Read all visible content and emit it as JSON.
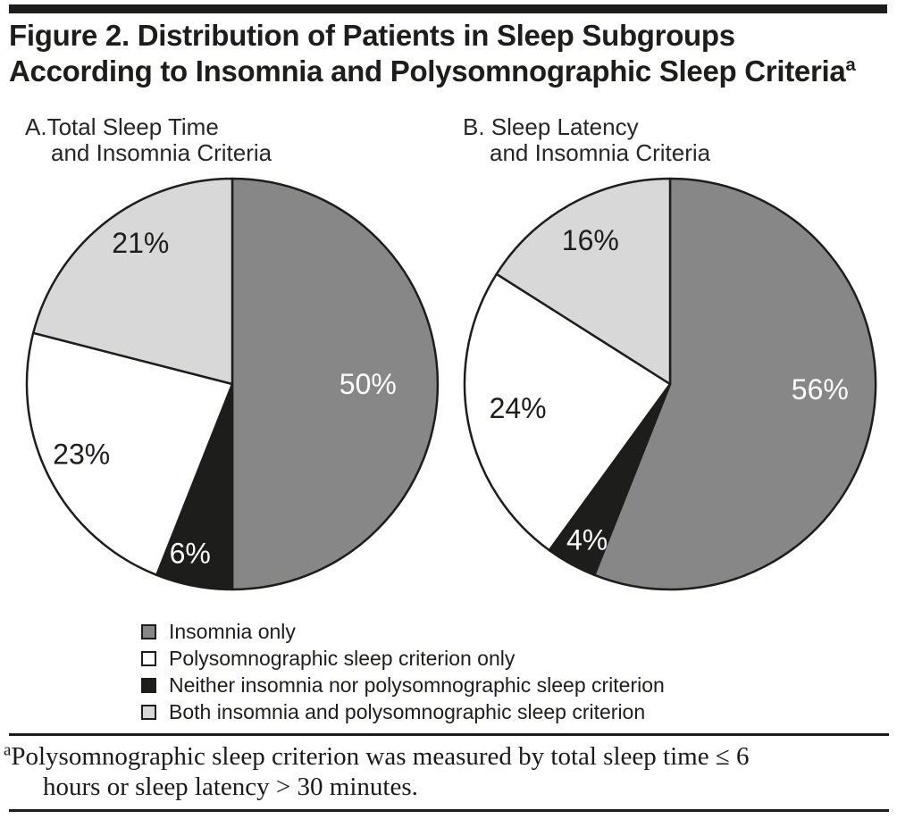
{
  "header": {
    "title_line1": "Figure 2. Distribution of Patients in Sleep Subgroups",
    "title_line2": "According to Insomnia and Polysomnographic Sleep Criteria",
    "title_superscript": "a"
  },
  "colors": {
    "insomnia_only": "#878787",
    "psg_only": "#ffffff",
    "neither": "#1d1d1b",
    "both": "#d8d8d8",
    "stroke": "#1d1d1b",
    "rule": "#1d1d1b"
  },
  "legend": {
    "items": [
      {
        "label": "Insomnia only",
        "color": "#878787"
      },
      {
        "label": "Polysomnographic sleep criterion only",
        "color": "#ffffff"
      },
      {
        "label": "Neither insomnia nor polysomnographic sleep criterion",
        "color": "#1d1d1b"
      },
      {
        "label": "Both insomnia and polysomnographic sleep criterion",
        "color": "#d8d8d8"
      }
    ]
  },
  "footnote": {
    "superscript": "a",
    "line1": "Polysomnographic sleep criterion was measured by total sleep time ≤ 6",
    "line2": "hours or sleep latency > 30 minutes."
  },
  "chart_data": [
    {
      "type": "pie",
      "title_line1": "A.Total Sleep Time",
      "title_line2": "and Insomnia Criteria",
      "start_angle_deg_from_top": 0,
      "direction": "clockwise",
      "slices": [
        {
          "label": "Insomnia only",
          "value_pct": 50,
          "display": "50%",
          "color": "#878787",
          "text_color": "#ffffff",
          "label_angle": 90,
          "label_r": 0.66
        },
        {
          "label": "Neither insomnia nor polysomnographic sleep criterion",
          "value_pct": 6,
          "display": "6%",
          "color": "#1d1d1b",
          "text_color": "#ffffff",
          "label_angle": 194,
          "label_r": 0.85
        },
        {
          "label": "Polysomnographic sleep criterion only",
          "value_pct": 23,
          "display": "23%",
          "color": "#ffffff",
          "text_color": "#1d1d1b",
          "label_angle": 245,
          "label_r": 0.81
        },
        {
          "label": "Both insomnia and polysomnographic sleep criterion",
          "value_pct": 21,
          "display": "21%",
          "color": "#d8d8d8",
          "text_color": "#1d1d1b",
          "label_angle": 327,
          "label_r": 0.82
        }
      ]
    },
    {
      "type": "pie",
      "title_line1": "B. Sleep Latency",
      "title_line2": "and Insomnia Criteria",
      "start_angle_deg_from_top": 0,
      "direction": "clockwise",
      "slices": [
        {
          "label": "Insomnia only",
          "value_pct": 56,
          "display": "56%",
          "color": "#878787",
          "text_color": "#ffffff",
          "label_angle": 92,
          "label_r": 0.73
        },
        {
          "label": "Neither insomnia nor polysomnographic sleep criterion",
          "value_pct": 4,
          "display": "4%",
          "color": "#1d1d1b",
          "text_color": "#ffffff",
          "label_angle": 208,
          "label_r": 0.86
        },
        {
          "label": "Polysomnographic sleep criterion only",
          "value_pct": 24,
          "display": "24%",
          "color": "#ffffff",
          "text_color": "#1d1d1b",
          "label_angle": 261,
          "label_r": 0.75
        },
        {
          "label": "Both insomnia and polysomnographic sleep criterion",
          "value_pct": 16,
          "display": "16%",
          "color": "#d8d8d8",
          "text_color": "#1d1d1b",
          "label_angle": 331,
          "label_r": 0.8
        }
      ]
    }
  ]
}
